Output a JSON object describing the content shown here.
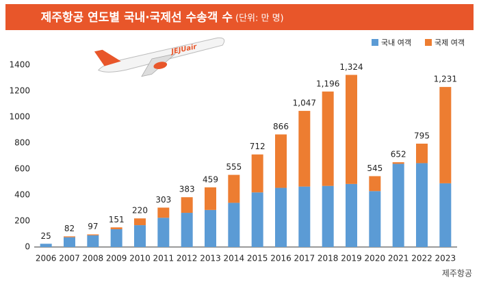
{
  "chart_data": {
    "type": "stacked_bar",
    "title": "제주항공 연도별 국내·국제선 수송객 수",
    "subtitle": "(단위: 만 명)",
    "source": "제주항공",
    "categories": [
      "2006",
      "2007",
      "2008",
      "2009",
      "2010",
      "2011",
      "2012",
      "2013",
      "2014",
      "2015",
      "2016",
      "2017",
      "2018",
      "2019",
      "2020",
      "2021",
      "2022",
      "2023"
    ],
    "series": [
      {
        "name": "국내 여객",
        "color": "#5b9bd5",
        "values": [
          25,
          75,
          90,
          137,
          168,
          225,
          263,
          285,
          340,
          420,
          455,
          465,
          470,
          485,
          430,
          640,
          645,
          490
        ]
      },
      {
        "name": "국제 여객",
        "color": "#ed7d31",
        "values": [
          0,
          7,
          7,
          14,
          52,
          78,
          120,
          174,
          215,
          292,
          411,
          582,
          726,
          839,
          115,
          12,
          150,
          741
        ]
      }
    ],
    "total_labels": [
      "25",
      "82",
      "97",
      "151",
      "220",
      "303",
      "383",
      "459",
      "555",
      "712",
      "866",
      "1,047",
      "1,196",
      "1,324",
      "545",
      "652",
      "795",
      "1,231"
    ],
    "ylim": [
      0,
      1400
    ],
    "yticks": [
      0,
      200,
      400,
      600,
      800,
      1000,
      1200,
      1400
    ],
    "grid": false,
    "legend": "top-right"
  }
}
